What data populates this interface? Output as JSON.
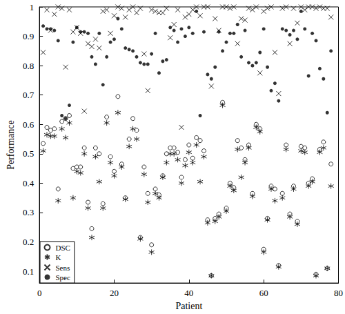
{
  "chart_data": {
    "type": "scatter",
    "x_label": "Patient",
    "y_label": "Performance",
    "x": [
      1,
      2,
      3,
      4,
      5,
      6,
      7,
      8,
      9,
      10,
      11,
      12,
      13,
      14,
      15,
      16,
      17,
      18,
      19,
      20,
      21,
      22,
      23,
      24,
      25,
      26,
      27,
      28,
      29,
      30,
      31,
      32,
      33,
      34,
      35,
      36,
      37,
      38,
      39,
      40,
      41,
      42,
      43,
      44,
      45,
      46,
      47,
      48,
      49,
      50,
      51,
      52,
      53,
      54,
      55,
      56,
      57,
      58,
      59,
      60,
      61,
      62,
      63,
      64,
      65,
      66,
      67,
      68,
      69,
      70,
      71,
      72,
      73,
      74,
      75,
      76,
      77,
      78
    ],
    "series": [
      {
        "name": "DSC",
        "color": "#000000",
        "marker": "circle-open",
        "values": [
          0.535,
          0.59,
          0.58,
          0.585,
          0.38,
          0.61,
          0.62,
          0.63,
          0.45,
          0.455,
          0.455,
          0.52,
          0.335,
          0.245,
          0.52,
          0.5,
          0.33,
          0.625,
          0.49,
          0.44,
          0.695,
          0.465,
          0.35,
          0.55,
          0.62,
          0.58,
          0.215,
          0.455,
          0.365,
          0.19,
          0.38,
          0.36,
          0.425,
          0.5,
          0.52,
          0.52,
          0.505,
          0.42,
          0.48,
          0.53,
          0.485,
          0.555,
          0.545,
          0.51,
          0.275,
          0.085,
          0.28,
          0.295,
          0.675,
          0.315,
          0.4,
          0.385,
          0.545,
          0.52,
          0.48,
          0.53,
          0.365,
          0.6,
          0.585,
          0.175,
          0.28,
          0.39,
          0.38,
          0.12,
          0.365,
          0.53,
          0.295,
          0.39,
          0.27,
          0.525,
          0.52,
          0.4,
          0.415,
          0.09,
          0.515,
          0.54,
          0.11,
          0.465
        ]
      },
      {
        "name": "K",
        "color": "#000000",
        "marker": "asterisk",
        "values": [
          0.51,
          0.565,
          0.56,
          0.56,
          0.34,
          0.585,
          0.555,
          0.605,
          0.35,
          0.44,
          0.435,
          0.5,
          0.315,
          0.215,
          0.49,
          0.405,
          0.315,
          0.605,
          0.47,
          0.425,
          0.64,
          0.455,
          0.345,
          0.525,
          0.585,
          0.55,
          0.21,
          0.43,
          0.335,
          0.165,
          0.365,
          0.35,
          0.42,
          0.47,
          0.5,
          0.5,
          0.48,
          0.4,
          0.46,
          0.505,
          0.47,
          0.53,
          0.405,
          0.49,
          0.265,
          0.085,
          0.27,
          0.285,
          0.665,
          0.305,
          0.39,
          0.375,
          0.515,
          0.42,
          0.47,
          0.52,
          0.355,
          0.59,
          0.575,
          0.165,
          0.275,
          0.38,
          0.34,
          0.115,
          0.35,
          0.515,
          0.285,
          0.38,
          0.26,
          0.51,
          0.505,
          0.39,
          0.405,
          0.085,
          0.505,
          0.52,
          0.11,
          0.39
        ]
      },
      {
        "name": "Sens",
        "color": "#000000",
        "marker": "x",
        "values": [
          0.845,
          0.99,
          0.92,
          0.975,
          1.0,
          0.995,
          0.795,
          0.99,
          0.915,
          0.93,
          0.91,
          0.645,
          0.875,
          0.865,
          0.89,
          0.86,
          0.985,
          0.99,
          0.91,
          0.97,
          1.0,
          0.995,
          0.965,
          0.99,
          1.0,
          0.98,
          0.995,
          0.84,
          0.715,
          0.99,
          0.985,
          0.98,
          0.98,
          0.995,
          0.895,
          0.94,
          0.99,
          0.59,
          0.965,
          0.975,
          0.99,
          1.0,
          0.97,
          1.0,
          1.0,
          0.73,
          0.96,
          0.92,
          1.0,
          1.0,
          0.995,
          1.0,
          0.875,
          0.96,
          0.955,
          0.995,
          0.99,
          1.0,
          0.775,
          0.985,
          0.995,
          1.0,
          0.845,
          0.705,
          0.995,
          1.0,
          0.875,
          0.995,
          0.945,
          1.0,
          0.99,
          1.0,
          1.0,
          0.995,
          1.0,
          0.995,
          0.995,
          0.965
        ]
      },
      {
        "name": "Spec",
        "color": "#000000",
        "marker": "dot",
        "values": [
          0.935,
          0.925,
          0.925,
          0.92,
          0.885,
          0.63,
          0.62,
          0.665,
          0.88,
          0.93,
          0.915,
          0.915,
          0.91,
          0.83,
          0.805,
          0.91,
          0.735,
          0.83,
          0.88,
          0.89,
          0.96,
          0.925,
          0.86,
          0.855,
          0.85,
          0.83,
          0.81,
          0.805,
          0.805,
          0.84,
          0.91,
          0.775,
          0.815,
          0.82,
          0.93,
          0.92,
          0.88,
          0.925,
          0.9,
          0.93,
          0.91,
          0.985,
          0.63,
          0.915,
          0.77,
          0.755,
          0.795,
          0.915,
          0.85,
          0.88,
          0.91,
          0.91,
          0.94,
          0.83,
          0.92,
          0.81,
          0.8,
          0.81,
          0.845,
          0.925,
          0.795,
          0.715,
          0.74,
          0.68,
          0.925,
          0.92,
          0.905,
          0.92,
          0.89,
          0.985,
          0.925,
          0.765,
          0.91,
          0.885,
          0.79,
          0.755,
          0.64,
          0.85
        ]
      }
    ],
    "xlim": [
      0,
      80
    ],
    "xticks": [
      0,
      20,
      40,
      60,
      80
    ],
    "ylim": [
      0.06,
      1
    ],
    "yticks": [
      0.1,
      0.2,
      0.3,
      0.4,
      0.5,
      0.6,
      0.7,
      0.8,
      0.9,
      1
    ],
    "grid": false,
    "legend": "lower left"
  }
}
